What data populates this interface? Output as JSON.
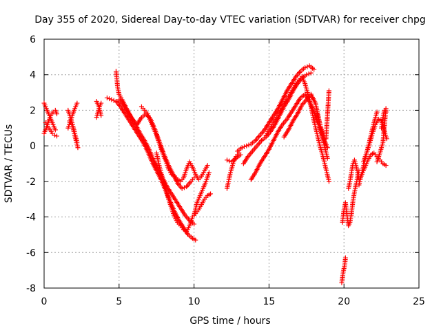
{
  "chart_data": {
    "type": "scatter",
    "title": "Day 355 of 2020, Sidereal Day-to-day VTEC variation (SDTVAR) for receiver chpg",
    "xlabel": "GPS time / hours",
    "ylabel": "SDTVAR / TECUs",
    "xlim": [
      0,
      25
    ],
    "ylim": [
      -8,
      6
    ],
    "xticks": [
      0,
      5,
      10,
      15,
      20,
      25
    ],
    "yticks": [
      -8,
      -6,
      -4,
      -2,
      0,
      2,
      4,
      6
    ],
    "xtick_labels": [
      "0",
      "5",
      "10",
      "15",
      "20",
      "25"
    ],
    "ytick_labels": [
      "-8",
      "-6",
      "-4",
      "-2",
      "0",
      "2",
      "4",
      "6"
    ],
    "grid": true,
    "marker": "+",
    "marker_color": "#ff0000",
    "series": [
      {
        "name": "seg_a",
        "x": [
          0.0,
          0.15,
          0.3,
          0.45,
          0.6,
          0.75
        ],
        "y": [
          2.4,
          2.1,
          1.8,
          1.5,
          1.2,
          0.9
        ]
      },
      {
        "name": "seg_b",
        "x": [
          0.0,
          0.15,
          0.3,
          0.45,
          0.6,
          0.75,
          0.85
        ],
        "y": [
          0.7,
          1.0,
          1.4,
          1.7,
          1.9,
          2.0,
          1.8
        ]
      },
      {
        "name": "seg_c",
        "x": [
          0.1,
          0.25,
          0.4,
          0.55,
          0.7,
          0.85
        ],
        "y": [
          1.3,
          1.1,
          0.9,
          0.7,
          0.6,
          0.55
        ]
      },
      {
        "name": "seg_d",
        "x": [
          1.6,
          1.75,
          1.9,
          2.05,
          2.2
        ],
        "y": [
          2.0,
          1.6,
          1.2,
          0.7,
          0.2
        ]
      },
      {
        "name": "seg_e",
        "x": [
          1.6,
          1.8,
          2.0,
          2.2
        ],
        "y": [
          1.0,
          1.5,
          2.0,
          2.4
        ]
      },
      {
        "name": "seg_f",
        "x": [
          1.7,
          1.9,
          2.1,
          2.25
        ],
        "y": [
          1.4,
          1.1,
          0.4,
          -0.1
        ]
      },
      {
        "name": "seg_g",
        "x": [
          3.5,
          3.6,
          3.7,
          3.8
        ],
        "y": [
          1.6,
          1.9,
          2.2,
          2.4
        ]
      },
      {
        "name": "seg_h",
        "x": [
          3.5,
          3.65,
          3.8
        ],
        "y": [
          2.5,
          2.2,
          1.7
        ]
      },
      {
        "name": "seg_i",
        "x": [
          4.2,
          4.5,
          4.8,
          5.1,
          5.4,
          5.7,
          6.0,
          6.3,
          6.6,
          6.9,
          7.2,
          7.5,
          7.8,
          8.1,
          8.4,
          8.7,
          9.0,
          9.3,
          9.6,
          9.9,
          10.1
        ],
        "y": [
          2.7,
          2.6,
          2.5,
          2.2,
          1.8,
          1.4,
          1.0,
          0.6,
          0.2,
          -0.3,
          -0.9,
          -1.4,
          -1.9,
          -2.5,
          -3.1,
          -3.7,
          -4.2,
          -4.6,
          -5.0,
          -5.2,
          -5.3
        ]
      },
      {
        "name": "seg_j",
        "x": [
          4.8,
          4.85,
          4.9,
          5.0,
          5.2,
          5.5,
          5.8,
          6.1,
          6.4,
          6.7,
          7.0,
          7.3,
          7.6,
          7.9,
          8.2,
          8.5,
          8.8,
          9.1,
          9.4,
          9.7,
          10.0
        ],
        "y": [
          4.2,
          3.8,
          3.3,
          2.9,
          2.6,
          2.1,
          1.6,
          1.2,
          0.7,
          0.3,
          -0.2,
          -0.8,
          -1.3,
          -1.8,
          -2.3,
          -2.7,
          -3.1,
          -3.5,
          -3.9,
          -4.2,
          -4.4
        ]
      },
      {
        "name": "seg_k",
        "x": [
          5.0,
          5.3,
          5.6,
          5.9,
          6.2,
          6.5,
          6.8,
          7.1,
          7.4,
          7.7,
          8.0,
          8.3,
          8.6,
          8.9,
          9.2,
          9.5,
          9.8,
          10.0
        ],
        "y": [
          2.6,
          2.3,
          1.9,
          1.5,
          1.2,
          1.6,
          1.8,
          1.5,
          0.9,
          0.2,
          -0.5,
          -1.1,
          -1.6,
          -2.1,
          -2.4,
          -2.3,
          -2.0,
          -1.8
        ]
      },
      {
        "name": "seg_l",
        "x": [
          6.5,
          6.7,
          6.9,
          7.1,
          7.3,
          7.5,
          7.7,
          7.9,
          8.1,
          8.3,
          8.5,
          8.7,
          8.9,
          9.1,
          9.3,
          9.5,
          9.7,
          9.9,
          10.1,
          10.3,
          10.5,
          10.7,
          10.9
        ],
        "y": [
          2.2,
          2.0,
          1.8,
          1.4,
          1.0,
          0.6,
          0.1,
          -0.4,
          -0.8,
          -1.3,
          -1.6,
          -1.7,
          -1.9,
          -2.0,
          -1.8,
          -1.3,
          -0.9,
          -1.2,
          -1.6,
          -1.9,
          -1.7,
          -1.4,
          -1.1
        ]
      },
      {
        "name": "seg_m",
        "x": [
          7.5,
          7.7,
          7.9,
          8.1,
          8.3,
          8.5,
          8.7,
          8.9,
          9.1,
          9.3,
          9.5,
          9.7,
          9.9,
          10.1,
          10.3,
          10.5,
          10.7,
          10.9,
          11.1
        ],
        "y": [
          -0.4,
          -1.2,
          -1.8,
          -2.4,
          -3.0,
          -3.5,
          -4.0,
          -4.3,
          -4.5,
          -4.7,
          -4.8,
          -4.5,
          -4.0,
          -3.8,
          -3.6,
          -3.3,
          -3.0,
          -2.8,
          -2.7
        ]
      },
      {
        "name": "seg_n",
        "x": [
          10.0,
          10.2,
          10.4,
          10.6,
          10.8,
          11.0
        ],
        "y": [
          -3.9,
          -3.2,
          -2.8,
          -2.4,
          -2.0,
          -1.5
        ]
      },
      {
        "name": "seg_o",
        "x": [
          12.2,
          12.4,
          12.6,
          12.8,
          13.0
        ],
        "y": [
          -2.4,
          -1.6,
          -1.0,
          -0.6,
          -0.4
        ]
      },
      {
        "name": "seg_p",
        "x": [
          12.2,
          12.5,
          12.8,
          13.1
        ],
        "y": [
          -0.8,
          -0.9,
          -0.7,
          -0.5
        ]
      },
      {
        "name": "seg_q",
        "x": [
          12.9,
          13.2,
          13.5,
          13.8,
          14.1,
          14.4,
          14.7,
          15.0,
          15.3,
          15.6,
          15.9,
          16.2,
          16.5,
          16.8,
          17.1,
          17.4,
          17.7,
          18.0
        ],
        "y": [
          -0.3,
          -0.1,
          0.0,
          0.1,
          0.3,
          0.6,
          0.9,
          1.3,
          1.7,
          2.1,
          2.6,
          3.1,
          3.5,
          3.9,
          4.2,
          4.4,
          4.5,
          4.3
        ]
      },
      {
        "name": "seg_r",
        "x": [
          13.3,
          13.6,
          13.9,
          14.2,
          14.5,
          14.8,
          15.1,
          15.4,
          15.7,
          16.0,
          16.3,
          16.6,
          16.9,
          17.2,
          17.5,
          17.8
        ],
        "y": [
          -1.0,
          -0.6,
          -0.3,
          0.0,
          0.3,
          0.5,
          0.8,
          1.2,
          1.7,
          2.2,
          2.6,
          3.1,
          3.5,
          3.8,
          4.0,
          4.1
        ]
      },
      {
        "name": "seg_s",
        "x": [
          13.8,
          14.1,
          14.4,
          14.7,
          15.0,
          15.3,
          15.6,
          15.9,
          16.2,
          16.5,
          16.8,
          17.1,
          17.4,
          17.7,
          18.0,
          18.3,
          18.6,
          18.9
        ],
        "y": [
          -1.9,
          -1.5,
          -1.0,
          -0.6,
          -0.2,
          0.3,
          0.8,
          1.2,
          1.5,
          1.9,
          2.3,
          2.7,
          2.9,
          2.5,
          1.9,
          1.2,
          0.5,
          -0.1
        ]
      },
      {
        "name": "seg_t",
        "x": [
          14.8,
          15.0,
          15.2,
          15.4,
          15.6,
          15.8,
          16.0,
          16.2,
          16.4,
          16.6,
          16.8,
          17.0,
          17.2,
          17.4,
          17.6,
          17.8,
          18.0,
          18.2,
          18.4,
          18.6,
          18.8,
          19.0
        ],
        "y": [
          0.6,
          0.9,
          1.2,
          1.5,
          1.8,
          2.1,
          2.4,
          2.7,
          2.9,
          3.2,
          3.5,
          3.7,
          3.9,
          3.5,
          2.9,
          2.2,
          1.4,
          0.7,
          0.0,
          -0.6,
          -1.3,
          -2.0
        ]
      },
      {
        "name": "seg_u",
        "x": [
          16.0,
          16.3,
          16.6,
          16.9,
          17.2,
          17.5,
          17.8,
          18.1,
          18.4,
          18.7,
          18.9
        ],
        "y": [
          0.5,
          0.9,
          1.4,
          1.8,
          2.3,
          2.6,
          2.9,
          2.4,
          1.2,
          0.0,
          -0.7
        ]
      },
      {
        "name": "seg_v",
        "x": [
          18.2,
          18.4,
          18.6,
          18.8,
          19.0
        ],
        "y": [
          1.8,
          1.2,
          0.6,
          0.4,
          3.1
        ]
      },
      {
        "name": "seg_w",
        "x": [
          19.85,
          19.9,
          19.95,
          20.0,
          20.05,
          20.1
        ],
        "y": [
          -7.7,
          -7.4,
          -7.1,
          -6.9,
          -6.7,
          -6.3
        ]
      },
      {
        "name": "seg_x",
        "x": [
          19.9,
          20.0,
          20.1,
          20.2,
          20.3,
          20.4,
          20.5,
          20.6,
          20.7,
          20.8,
          20.9,
          21.0
        ],
        "y": [
          -4.3,
          -3.6,
          -3.2,
          -3.9,
          -4.5,
          -4.3,
          -3.8,
          -3.1,
          -2.6,
          -2.2,
          -1.8,
          -1.4
        ]
      },
      {
        "name": "seg_y",
        "x": [
          20.3,
          20.4,
          20.5,
          20.6,
          20.7,
          20.8,
          20.9,
          21.0,
          21.2,
          21.4,
          21.6,
          21.8,
          22.0,
          22.2,
          22.4,
          22.6,
          22.8
        ],
        "y": [
          -2.4,
          -2.0,
          -1.5,
          -1.0,
          -0.8,
          -1.1,
          -1.5,
          -1.9,
          -1.6,
          -1.2,
          -0.8,
          -0.5,
          -0.4,
          -0.6,
          -0.8,
          -1.0,
          -1.1
        ]
      },
      {
        "name": "seg_z",
        "x": [
          21.0,
          21.2,
          21.4,
          21.6,
          21.8,
          22.0,
          22.2
        ],
        "y": [
          -2.2,
          -1.5,
          -0.8,
          -0.1,
          0.6,
          1.3,
          1.9
        ]
      },
      {
        "name": "seg_aa",
        "x": [
          21.3,
          21.5,
          21.7,
          21.9,
          22.1,
          22.3,
          22.5,
          22.7,
          22.85
        ],
        "y": [
          -0.9,
          -0.4,
          0.1,
          0.7,
          1.2,
          1.5,
          1.4,
          0.8,
          0.4
        ]
      },
      {
        "name": "seg_ab",
        "x": [
          22.2,
          22.4,
          22.6,
          22.8
        ],
        "y": [
          -0.9,
          -0.4,
          0.2,
          2.1
        ]
      },
      {
        "name": "seg_ac",
        "x": [
          22.5,
          22.6,
          22.7,
          22.8
        ],
        "y": [
          1.0,
          1.6,
          2.0,
          1.9
        ]
      }
    ]
  }
}
